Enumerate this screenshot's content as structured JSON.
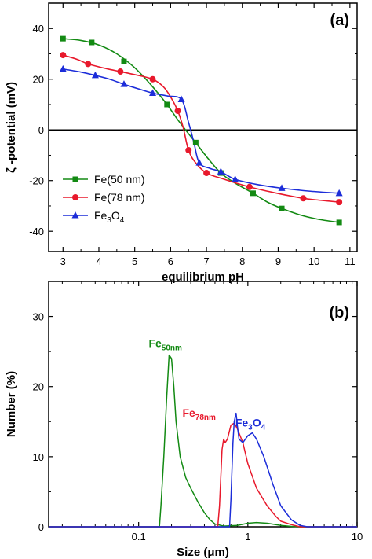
{
  "chart_data": [
    {
      "type": "line",
      "panel_label": "(a)",
      "xlabel": "equilibrium pH",
      "ylabel": "ζ -potential (mV)",
      "xlim": [
        2.6,
        11.2
      ],
      "ylim": [
        -48,
        50
      ],
      "xticks": [
        3,
        4,
        5,
        6,
        7,
        8,
        9,
        10,
        11
      ],
      "yticks": [
        -40,
        -20,
        0,
        20,
        40
      ],
      "zero_line": true,
      "legend_position": "lower-left",
      "series": [
        {
          "name": "Fe(50 nm)",
          "color": "#138a13",
          "marker": "square",
          "points": [
            [
              3.0,
              36
            ],
            [
              3.8,
              34.5
            ],
            [
              4.7,
              27
            ],
            [
              5.9,
              10
            ],
            [
              6.7,
              -5
            ],
            [
              7.4,
              -17
            ],
            [
              8.3,
              -25
            ],
            [
              9.1,
              -31
            ],
            [
              10.7,
              -36.5
            ]
          ],
          "curve": [
            [
              3.0,
              36
            ],
            [
              3.5,
              35.3
            ],
            [
              4.0,
              33.5
            ],
            [
              4.5,
              30
            ],
            [
              5.0,
              24.5
            ],
            [
              5.5,
              17
            ],
            [
              5.9,
              10
            ],
            [
              6.2,
              4
            ],
            [
              6.5,
              -1.5
            ],
            [
              6.7,
              -5
            ],
            [
              7.0,
              -10.5
            ],
            [
              7.4,
              -17
            ],
            [
              7.8,
              -21
            ],
            [
              8.3,
              -25
            ],
            [
              8.7,
              -28.5
            ],
            [
              9.1,
              -31
            ],
            [
              9.6,
              -33.5
            ],
            [
              10.1,
              -35.2
            ],
            [
              10.7,
              -36.5
            ]
          ]
        },
        {
          "name": "Fe(78 nm)",
          "color": "#e8192c",
          "marker": "circle",
          "points": [
            [
              3.0,
              29.5
            ],
            [
              3.7,
              26
            ],
            [
              4.6,
              23
            ],
            [
              5.5,
              20
            ],
            [
              6.2,
              7.5
            ],
            [
              6.5,
              -8
            ],
            [
              7.0,
              -17
            ],
            [
              8.2,
              -22.5
            ],
            [
              9.7,
              -27
            ],
            [
              10.7,
              -28.5
            ]
          ],
          "curve": [
            [
              3.0,
              29.5
            ],
            [
              3.4,
              27.8
            ],
            [
              3.7,
              26
            ],
            [
              4.2,
              24.2
            ],
            [
              4.6,
              23
            ],
            [
              5.0,
              21.8
            ],
            [
              5.5,
              20
            ],
            [
              5.8,
              17
            ],
            [
              6.0,
              13
            ],
            [
              6.2,
              7.5
            ],
            [
              6.35,
              1
            ],
            [
              6.5,
              -8
            ],
            [
              6.7,
              -13
            ],
            [
              7.0,
              -17
            ],
            [
              7.5,
              -19.5
            ],
            [
              8.2,
              -22.5
            ],
            [
              8.9,
              -24.8
            ],
            [
              9.7,
              -27
            ],
            [
              10.2,
              -27.8
            ],
            [
              10.7,
              -28.5
            ]
          ]
        },
        {
          "name": "Fe₃O₄",
          "legend_base": "Fe",
          "legend_sub1": "3",
          "legend_mid": "O",
          "legend_sub2": "4",
          "color": "#1c2dd9",
          "marker": "triangle",
          "points": [
            [
              3.0,
              24
            ],
            [
              3.9,
              21.5
            ],
            [
              4.7,
              18
            ],
            [
              5.5,
              14.5
            ],
            [
              6.3,
              12
            ],
            [
              6.8,
              -13
            ],
            [
              7.4,
              -16.5
            ],
            [
              7.8,
              -19.5
            ],
            [
              9.1,
              -23
            ],
            [
              10.7,
              -25
            ]
          ],
          "curve": [
            [
              3.0,
              24
            ],
            [
              3.5,
              22.8
            ],
            [
              3.9,
              21.5
            ],
            [
              4.3,
              20
            ],
            [
              4.7,
              18
            ],
            [
              5.1,
              16.2
            ],
            [
              5.5,
              14.5
            ],
            [
              5.9,
              13.4
            ],
            [
              6.3,
              12
            ],
            [
              6.5,
              3
            ],
            [
              6.65,
              -5
            ],
            [
              6.8,
              -13
            ],
            [
              7.1,
              -15.2
            ],
            [
              7.4,
              -16.5
            ],
            [
              7.8,
              -19.5
            ],
            [
              8.4,
              -21.5
            ],
            [
              9.1,
              -23
            ],
            [
              9.9,
              -24.2
            ],
            [
              10.7,
              -25
            ]
          ]
        }
      ]
    },
    {
      "type": "line",
      "panel_label": "(b)",
      "xlabel": "Size (μm)",
      "ylabel": "Number (%)",
      "xscale": "log",
      "xlim": [
        0.015,
        10
      ],
      "ylim": [
        0,
        35
      ],
      "xticks": [
        0.1,
        1,
        10
      ],
      "xtick_labels": [
        "0.1",
        "1",
        "10"
      ],
      "yticks": [
        0,
        10,
        20,
        30
      ],
      "series": [
        {
          "name": "Fe50nm",
          "label_base": "Fe",
          "label_sub": "50nm",
          "color": "#138a13",
          "x": [
            0.015,
            0.155,
            0.16,
            0.17,
            0.18,
            0.19,
            0.2,
            0.21,
            0.22,
            0.24,
            0.27,
            0.3,
            0.35,
            0.4,
            0.45,
            0.5,
            0.6,
            0.8,
            1.0,
            1.2,
            1.5,
            2.0,
            2.5,
            3.0,
            10
          ],
          "y": [
            0,
            0,
            3,
            10,
            18,
            24.5,
            24,
            20,
            15,
            10,
            7,
            5.5,
            3.5,
            2,
            1,
            0.4,
            0.1,
            0.2,
            0.5,
            0.6,
            0.5,
            0.2,
            0.05,
            0,
            0
          ]
        },
        {
          "name": "Fe78nm",
          "label_base": "Fe",
          "label_sub": "78nm",
          "color": "#e8192c",
          "x": [
            0.015,
            0.53,
            0.55,
            0.58,
            0.6,
            0.62,
            0.65,
            0.7,
            0.75,
            0.8,
            0.9,
            1.0,
            1.2,
            1.5,
            1.8,
            2.0,
            2.5,
            3.0,
            10
          ],
          "y": [
            0,
            0,
            3,
            11,
            12.5,
            12,
            12.5,
            14.5,
            14.8,
            14,
            12,
            9,
            5.5,
            3,
            1.5,
            0.8,
            0.3,
            0,
            0
          ]
        },
        {
          "name": "Fe₃O₄",
          "label_base": "Fe",
          "label_sub1": "3",
          "label_mid": "O",
          "label_sub2": "4",
          "color": "#1c2dd9",
          "x": [
            0.015,
            0.68,
            0.7,
            0.73,
            0.75,
            0.78,
            0.8,
            0.83,
            0.9,
            1.0,
            1.1,
            1.2,
            1.4,
            1.7,
            2.0,
            2.5,
            3.0,
            3.5,
            10
          ],
          "y": [
            0,
            0,
            4,
            12,
            15,
            16.2,
            14.5,
            12.5,
            12,
            13,
            13.4,
            12.5,
            10,
            6,
            3,
            1,
            0.2,
            0,
            0
          ]
        }
      ]
    }
  ]
}
